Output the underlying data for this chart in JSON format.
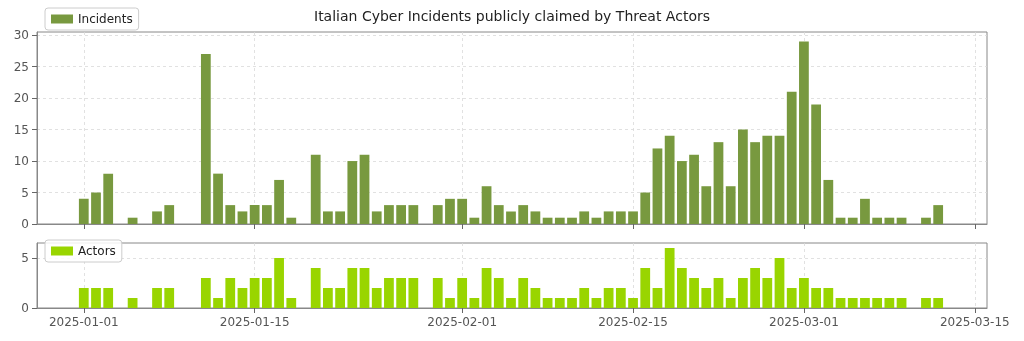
{
  "chart_data": [
    {
      "type": "bar",
      "title": "Italian Cyber Incidents publicly claimed by Threat Actors",
      "x": [
        "2025-01-01",
        "2025-01-02",
        "2025-01-03",
        "2025-01-05",
        "2025-01-07",
        "2025-01-08",
        "2025-01-11",
        "2025-01-12",
        "2025-01-13",
        "2025-01-14",
        "2025-01-15",
        "2025-01-16",
        "2025-01-17",
        "2025-01-18",
        "2025-01-20",
        "2025-01-21",
        "2025-01-22",
        "2025-01-23",
        "2025-01-24",
        "2025-01-25",
        "2025-01-26",
        "2025-01-27",
        "2025-01-28",
        "2025-01-30",
        "2025-01-31",
        "2025-02-01",
        "2025-02-02",
        "2025-02-03",
        "2025-02-04",
        "2025-02-05",
        "2025-02-06",
        "2025-02-07",
        "2025-02-08",
        "2025-02-09",
        "2025-02-10",
        "2025-02-11",
        "2025-02-12",
        "2025-02-13",
        "2025-02-14",
        "2025-02-15",
        "2025-02-16",
        "2025-02-17",
        "2025-02-18",
        "2025-02-19",
        "2025-02-20",
        "2025-02-21",
        "2025-02-22",
        "2025-02-23",
        "2025-02-24",
        "2025-02-25",
        "2025-02-26",
        "2025-02-27",
        "2025-02-28",
        "2025-03-01",
        "2025-03-02",
        "2025-03-03",
        "2025-03-04",
        "2025-03-05",
        "2025-03-06",
        "2025-03-07",
        "2025-03-08",
        "2025-03-09",
        "2025-03-11",
        "2025-03-12"
      ],
      "series": [
        {
          "name": "Incidents",
          "color": "#78993f",
          "values": [
            4,
            5,
            8,
            1,
            2,
            3,
            27,
            8,
            3,
            2,
            3,
            3,
            7,
            1,
            11,
            2,
            2,
            10,
            11,
            2,
            3,
            3,
            3,
            3,
            4,
            4,
            1,
            6,
            3,
            2,
            3,
            2,
            1,
            1,
            1,
            2,
            1,
            2,
            2,
            2,
            5,
            12,
            14,
            10,
            11,
            6,
            13,
            6,
            15,
            13,
            14,
            14,
            21,
            29,
            19,
            7,
            1,
            1,
            4,
            1,
            1,
            1,
            1,
            3
          ]
        }
      ],
      "xlim": [
        "2024-12-28T04:00",
        "2025-03-16"
      ],
      "xticks": [
        "2025-01-01",
        "2025-01-15",
        "2025-02-01",
        "2025-02-15",
        "2025-03-01",
        "2025-03-15"
      ],
      "ylim": [
        0,
        30.5
      ],
      "yticks": [
        0,
        5,
        10,
        15,
        20,
        25,
        30
      ],
      "grid": true,
      "legend": "top left",
      "tick_labels": "y"
    },
    {
      "type": "bar",
      "x": [
        "2025-01-01",
        "2025-01-02",
        "2025-01-03",
        "2025-01-05",
        "2025-01-07",
        "2025-01-08",
        "2025-01-11",
        "2025-01-12",
        "2025-01-13",
        "2025-01-14",
        "2025-01-15",
        "2025-01-16",
        "2025-01-17",
        "2025-01-18",
        "2025-01-20",
        "2025-01-21",
        "2025-01-22",
        "2025-01-23",
        "2025-01-24",
        "2025-01-25",
        "2025-01-26",
        "2025-01-27",
        "2025-01-28",
        "2025-01-30",
        "2025-01-31",
        "2025-02-01",
        "2025-02-02",
        "2025-02-03",
        "2025-02-04",
        "2025-02-05",
        "2025-02-06",
        "2025-02-07",
        "2025-02-08",
        "2025-02-09",
        "2025-02-10",
        "2025-02-11",
        "2025-02-12",
        "2025-02-13",
        "2025-02-14",
        "2025-02-15",
        "2025-02-16",
        "2025-02-17",
        "2025-02-18",
        "2025-02-19",
        "2025-02-20",
        "2025-02-21",
        "2025-02-22",
        "2025-02-23",
        "2025-02-24",
        "2025-02-25",
        "2025-02-26",
        "2025-02-27",
        "2025-02-28",
        "2025-03-01",
        "2025-03-02",
        "2025-03-03",
        "2025-03-04",
        "2025-03-05",
        "2025-03-06",
        "2025-03-07",
        "2025-03-08",
        "2025-03-09",
        "2025-03-11",
        "2025-03-12"
      ],
      "series": [
        {
          "name": "Actors",
          "color": "#99d500",
          "values": [
            2,
            2,
            2,
            1,
            2,
            2,
            3,
            1,
            3,
            2,
            3,
            3,
            5,
            1,
            4,
            2,
            2,
            4,
            4,
            2,
            3,
            3,
            3,
            3,
            1,
            3,
            1,
            4,
            3,
            1,
            3,
            2,
            1,
            1,
            1,
            2,
            1,
            2,
            2,
            1,
            4,
            2,
            6,
            4,
            3,
            2,
            3,
            1,
            3,
            4,
            3,
            5,
            2,
            3,
            2,
            2,
            1,
            1,
            1,
            1,
            1,
            1,
            1,
            1
          ]
        }
      ],
      "xlim": [
        "2024-12-28T04:00",
        "2025-03-16"
      ],
      "xticks": [
        "2025-01-01",
        "2025-01-15",
        "2025-02-01",
        "2025-02-15",
        "2025-03-01",
        "2025-03-15"
      ],
      "ylim": [
        0,
        6.5
      ],
      "yticks": [
        0,
        5
      ],
      "grid": true,
      "legend": "top left"
    }
  ]
}
